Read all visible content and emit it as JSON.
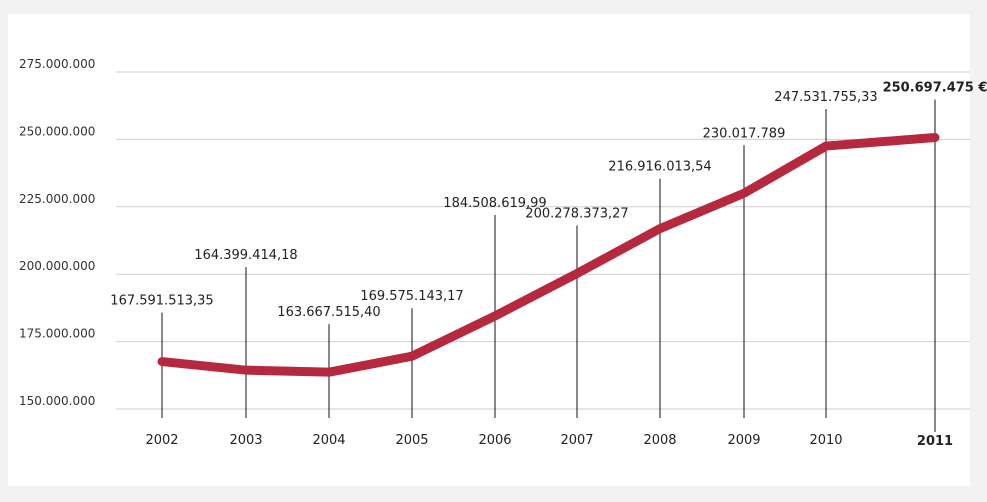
{
  "chart_data": {
    "type": "line",
    "title": "",
    "xlabel": "",
    "ylabel": "",
    "categories": [
      "2002",
      "2003",
      "2004",
      "2005",
      "2006",
      "2007",
      "2008",
      "2009",
      "2010",
      "2011"
    ],
    "values": [
      167591513.35,
      164399414.18,
      163667515.4,
      169575143.17,
      184508619.99,
      200278373.27,
      216916013.54,
      230017789,
      247531755.33,
      250697475
    ],
    "value_labels": [
      "167.591.513,35",
      "164.399.414,18",
      "163.667.515,40",
      "169.575.143,17",
      "184.508.619,99",
      "200.278.373,27",
      "216.916.013,54",
      "230.017.789",
      "247.531.755,33",
      "250.697.475 €"
    ],
    "y_ticks": [
      150000000,
      175000000,
      200000000,
      225000000,
      250000000,
      275000000
    ],
    "y_tick_labels": [
      "150.000.000",
      "175.000.000",
      "200.000.000",
      "225.000.000",
      "250.000.000",
      "275.000.000"
    ],
    "ylim": [
      150000000,
      275000000
    ],
    "grid": true,
    "highlight_last": true,
    "line_color": "#b5283e"
  }
}
